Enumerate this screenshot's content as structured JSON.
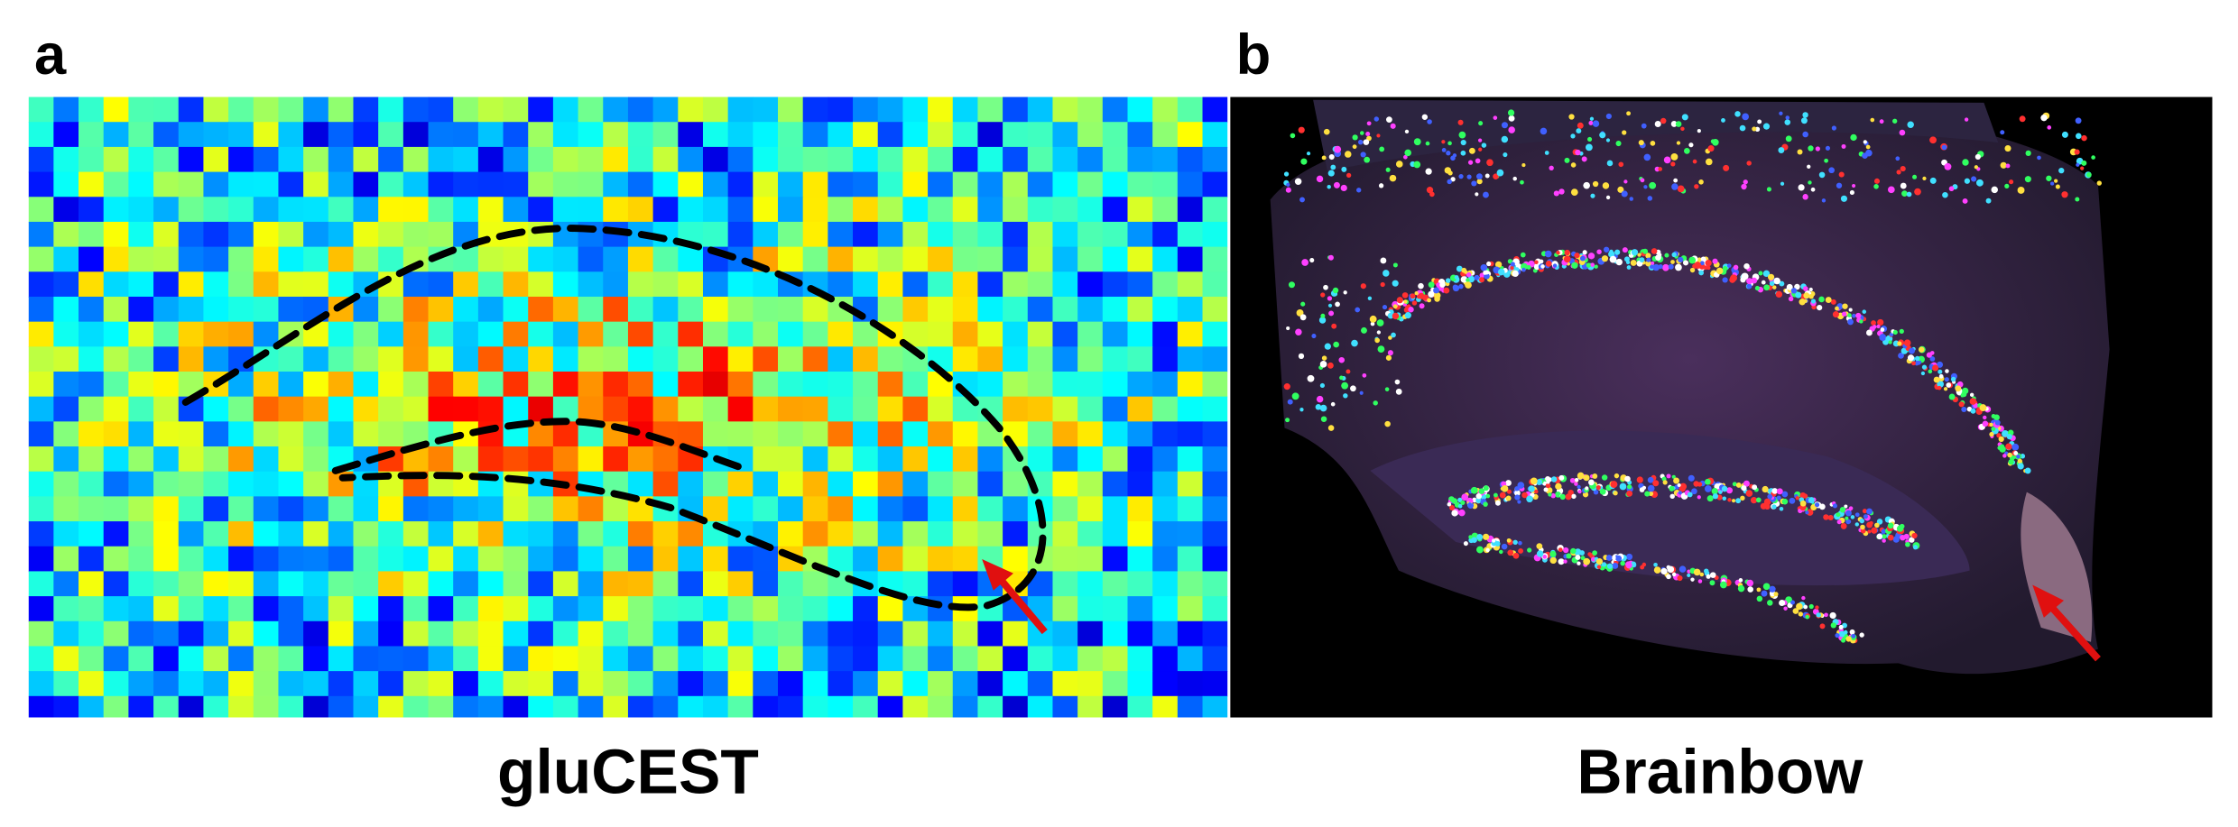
{
  "panels": [
    {
      "label": "a",
      "caption": "gluCEST"
    },
    {
      "label": "b",
      "caption": "Brainbow"
    }
  ]
}
